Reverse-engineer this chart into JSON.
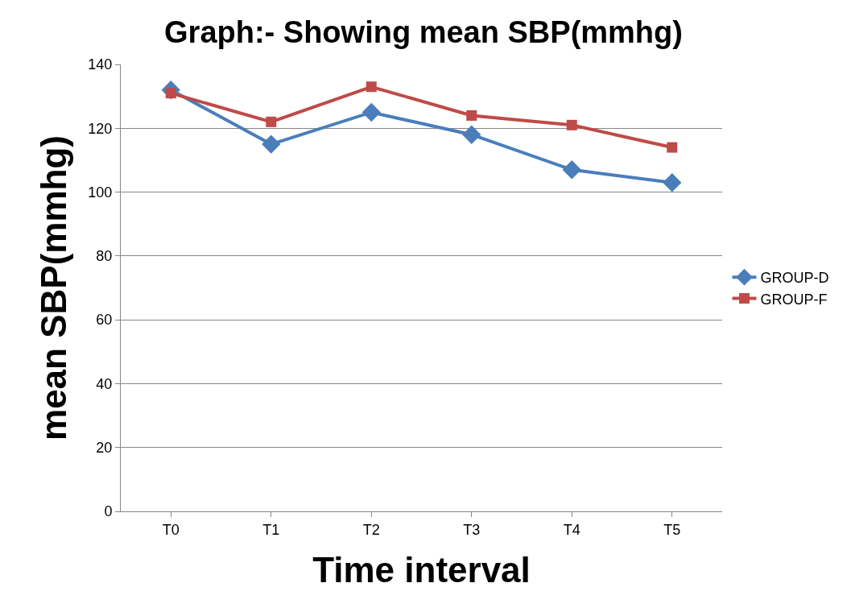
{
  "chart_data": {
    "type": "line",
    "title": "Graph:- Showing mean SBP(mmhg)",
    "xlabel": "Time interval",
    "ylabel": "mean SBP(mmhg)",
    "categories": [
      "T0",
      "T1",
      "T2",
      "T3",
      "T4",
      "T5"
    ],
    "series": [
      {
        "name": "GROUP-D",
        "color": "#4a7ebb",
        "marker": "diamond",
        "values": [
          132,
          115,
          125,
          118,
          107,
          103
        ]
      },
      {
        "name": "GROUP-F",
        "color": "#be4b48",
        "marker": "square",
        "values": [
          131,
          122,
          133,
          124,
          121,
          114
        ]
      }
    ],
    "ylim": [
      0,
      140
    ],
    "yticks": [
      0,
      20,
      40,
      60,
      80,
      100,
      120,
      140
    ],
    "grid": "y",
    "legend": "right",
    "line_style": "solid"
  }
}
